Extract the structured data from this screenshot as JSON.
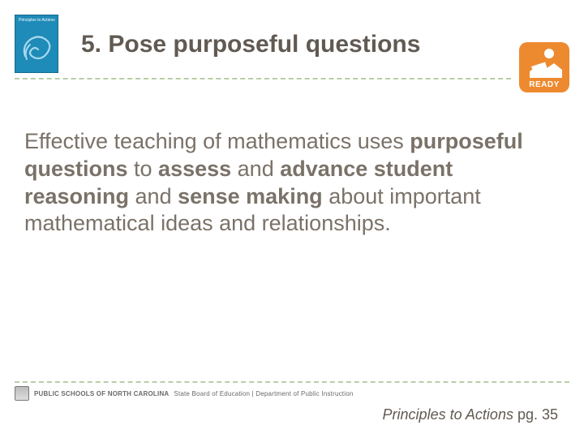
{
  "colors": {
    "body_text": "#7a7268",
    "title_text": "#615a52",
    "divider": "#b9cfa7",
    "book_bg": "#1e8bb8",
    "ready_bg": "#ed8a2f",
    "footer_text": "#6a6a6a"
  },
  "typography": {
    "title_fontsize": 30,
    "body_fontsize": 27,
    "citation_fontsize": 18,
    "footer_fontsize": 8,
    "title_weight": "bold"
  },
  "book": {
    "title_line1": "Principles to Actions"
  },
  "ready": {
    "label": "READY",
    "icon": "child-reading"
  },
  "title": "5. Pose purposeful questions",
  "body": {
    "parts": [
      {
        "text": "Effective teaching of mathematics uses ",
        "bold": false
      },
      {
        "text": "purposeful questions",
        "bold": true
      },
      {
        "text": " to ",
        "bold": false
      },
      {
        "text": "assess",
        "bold": true
      },
      {
        "text": " and ",
        "bold": false
      },
      {
        "text": "advance student reasoning",
        "bold": true
      },
      {
        "text": " and ",
        "bold": false
      },
      {
        "text": "sense making",
        "bold": true
      },
      {
        "text": " about important mathematical ideas and relationships.",
        "bold": false
      }
    ]
  },
  "footer": {
    "agency_main": "PUBLIC SCHOOLS OF NORTH CAROLINA",
    "agency_sub": "State Board of Education | Department of Public Instruction"
  },
  "citation": {
    "source": "Principles to Actions",
    "page_label": " pg. 35"
  }
}
